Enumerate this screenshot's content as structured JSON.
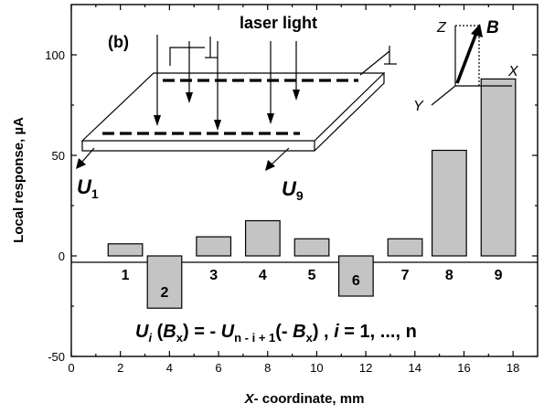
{
  "chart_data": {
    "type": "bar",
    "title": "",
    "xlabel_prefix": "X",
    "xlabel_rest": "- coordinate, mm",
    "ylabel": "Local response, µA",
    "xlim": [
      0,
      19
    ],
    "ylim": [
      -50,
      125
    ],
    "x_ticks": [
      0,
      2,
      4,
      6,
      8,
      10,
      12,
      14,
      16,
      18
    ],
    "y_ticks": [
      -50,
      0,
      50,
      100
    ],
    "grid": false,
    "bar_width": 1.4,
    "bars": [
      {
        "label": "1",
        "x": 2.2,
        "value": 6
      },
      {
        "label": "2",
        "x": 3.8,
        "value": -26
      },
      {
        "label": "3",
        "x": 5.8,
        "value": 9.5
      },
      {
        "label": "4",
        "x": 7.8,
        "value": 17.5
      },
      {
        "label": "5",
        "x": 9.8,
        "value": 8.5
      },
      {
        "label": "6",
        "x": 11.6,
        "value": -20
      },
      {
        "label": "7",
        "x": 13.6,
        "value": 8.5
      },
      {
        "label": "8",
        "x": 15.4,
        "value": 52.5
      },
      {
        "label": "9",
        "x": 17.4,
        "value": 88
      }
    ],
    "annotations": {
      "panel_label": "(b)",
      "laser": "laser light",
      "u1": "U",
      "u1_sub": "1",
      "u9": "U",
      "u9_sub": "9",
      "axis_z": "Z",
      "axis_x": "X",
      "axis_y": "Y",
      "axis_b": "B"
    },
    "formula": {
      "p1": "U",
      "p2": "i",
      "p3": " (",
      "p4": "B",
      "p5": "x",
      "p6": ") = - ",
      "p7": "U",
      "p8": "n - i + 1",
      "p9": "(- ",
      "p10": "B",
      "p11": "x",
      "p12": ") , ",
      "p13": "i",
      "p14": " = 1, ..., n"
    }
  }
}
